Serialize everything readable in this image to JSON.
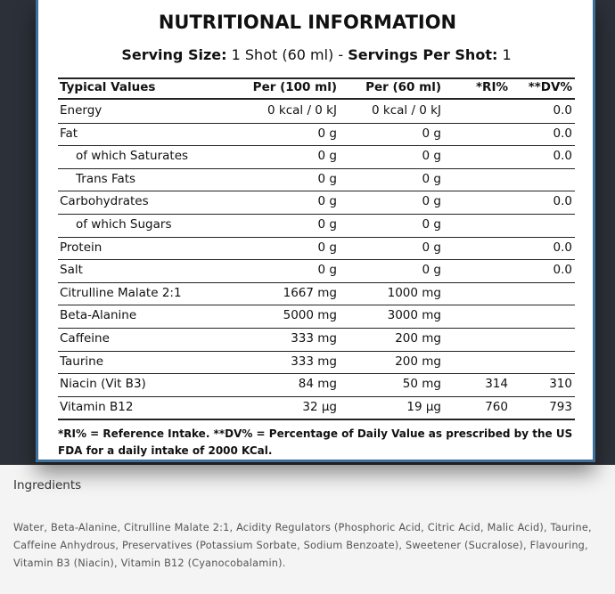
{
  "header": {
    "title": "NUTRITIONAL INFORMATION",
    "serving_size_label": "Serving Size:",
    "serving_size_value": "1 Shot (60 ml) -",
    "servings_label": "Servings Per Shot:",
    "servings_value": "1"
  },
  "table": {
    "columns": [
      "Typical Values",
      "Per (100 ml)",
      "Per (60 ml)",
      "*RI%",
      "**DV%"
    ],
    "rows": [
      {
        "label": "Energy",
        "per100": "0 kcal / 0 kJ",
        "per60": "0 kcal / 0 kJ",
        "dv": "0.0"
      },
      {
        "label": "Fat",
        "per100": "0 g",
        "per60": "0 g",
        "dv": "0.0"
      },
      {
        "label": "of which Saturates",
        "indent": true,
        "per100": "0 g",
        "per60": "0 g",
        "dv": "0.0"
      },
      {
        "label": "Trans Fats",
        "indent": true,
        "per100": "0 g",
        "per60": "0 g"
      },
      {
        "label": "Carbohydrates",
        "per100": "0 g",
        "per60": "0 g",
        "dv": "0.0"
      },
      {
        "label": "of which Sugars",
        "indent": true,
        "per100": "0 g",
        "per60": "0 g"
      },
      {
        "label": "Protein",
        "per100": "0 g",
        "per60": "0 g",
        "dv": "0.0"
      },
      {
        "label": "Salt",
        "per100": "0 g",
        "per60": "0 g",
        "dv": "0.0"
      },
      {
        "label": "Citrulline Malate 2:1",
        "per100": "1667 mg",
        "per60": "1000 mg"
      },
      {
        "label": "Beta-Alanine",
        "per100": "5000 mg",
        "per60": "3000 mg"
      },
      {
        "label": "Caffeine",
        "per100": "333 mg",
        "per60": "200 mg"
      },
      {
        "label": "Taurine",
        "per100": "333 mg",
        "per60": "200 mg"
      },
      {
        "label": "Niacin (Vit B3)",
        "per100": "84 mg",
        "per60": "50 mg",
        "ri": "314",
        "dv": "310"
      },
      {
        "label": "Vitamin B12",
        "per100": "32 µg",
        "per60": "19 µg",
        "ri": "760",
        "dv": "793"
      }
    ],
    "footnote": "*RI% = Reference Intake. **DV% = Percentage of Daily Value as prescribed by the US FDA for a daily intake of 2000 KCal."
  },
  "ingredients": {
    "title": "Ingredients",
    "text": "Water, Beta-Alanine, Citrulline Malate 2:1, Acidity Regulators (Phosphoric Acid, Citric Acid, Malic Acid), Taurine, Caffeine Anhydrous, Preservatives (Potassium Sorbate, Sodium Benzoate), Sweetener (Sucralose), Flavouring, Vitamin B3 (Niacin), Vitamin B12 (Cyanocobalamin)."
  }
}
